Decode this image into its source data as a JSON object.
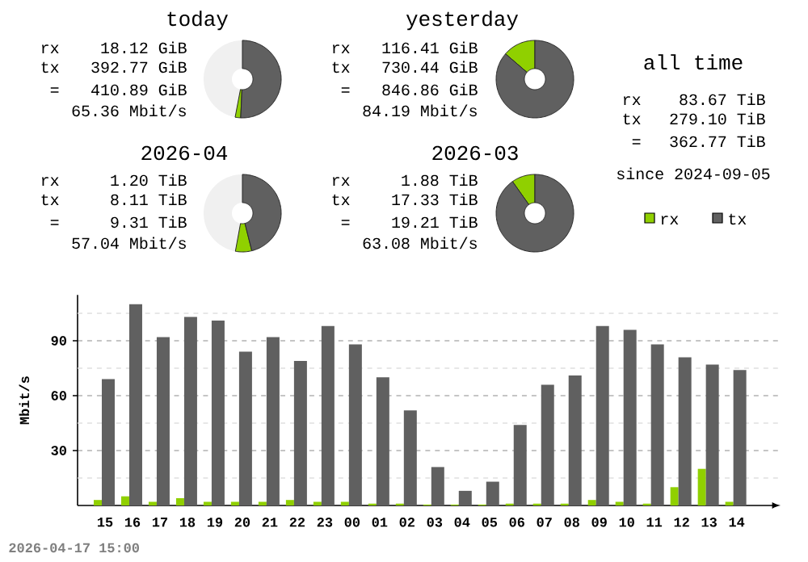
{
  "chart_data": [
    {
      "type": "donut",
      "title": "today",
      "categories": [
        null,
        null,
        null
      ],
      "values": [
        47,
        2.3,
        50.7
      ],
      "colors": [
        "#f0f0f0",
        "#90d000",
        "#606060"
      ],
      "annotations": [
        "rx",
        "18.12 GiB",
        "tx",
        "392.77 GiB",
        "=",
        "410.89 GiB",
        "65.36 Mbit/s"
      ]
    },
    {
      "type": "donut",
      "title": "yesterday",
      "categories": [
        null,
        null
      ],
      "values": [
        13.7,
        86.3
      ],
      "colors": [
        "#90d000",
        "#606060"
      ],
      "annotations": [
        "rx",
        "116.41 GiB",
        "tx",
        "730.44 GiB",
        "=",
        "846.86 GiB",
        "84.19 Mbit/s"
      ]
    },
    {
      "type": "other",
      "title": "all time",
      "annotations": [
        "rx",
        "83.67 TiB",
        "tx",
        "279.10 TiB",
        "=",
        "362.77 TiB",
        "since 2024-09-05"
      ]
    },
    {
      "type": "donut",
      "title": "2026-04",
      "categories": [
        null,
        null,
        null
      ],
      "values": [
        47.1,
        6.8,
        46.1
      ],
      "colors": [
        "#f0f0f0",
        "#90d000",
        "#606060"
      ],
      "annotations": [
        "rx",
        "1.20 TiB",
        "tx",
        "8.11 TiB",
        "=",
        "9.31 TiB",
        "57.04 Mbit/s"
      ]
    },
    {
      "type": "donut",
      "title": "2026-03",
      "categories": [
        null,
        null
      ],
      "values": [
        9.8,
        90.2
      ],
      "colors": [
        "#90d000",
        "#606060"
      ],
      "annotations": [
        "rx",
        "1.88 TiB",
        "tx",
        "17.33 TiB",
        "=",
        "19.21 TiB",
        "63.08 Mbit/s"
      ]
    },
    {
      "type": "bar",
      "ylabel": "Mbit/s",
      "categories": [
        "15",
        "16",
        "17",
        "18",
        "19",
        "20",
        "21",
        "22",
        "23",
        "00",
        "01",
        "02",
        "03",
        "04",
        "05",
        "06",
        "07",
        "08",
        "09",
        "10",
        "11",
        "12",
        "13",
        "14"
      ],
      "series": [
        {
          "name": "rx",
          "color": "#90d000",
          "values": [
            3,
            5,
            2,
            4,
            2,
            2,
            2,
            3,
            2,
            2,
            1,
            1,
            0.5,
            0.5,
            0.5,
            1,
            1,
            1,
            3,
            2,
            1,
            10,
            20,
            2
          ]
        },
        {
          "name": "tx",
          "color": "#606060",
          "values": [
            69,
            110,
            92,
            103,
            101,
            84,
            92,
            79,
            98,
            88,
            70,
            52,
            21,
            8,
            13,
            44,
            66,
            71,
            98,
            96,
            88,
            81,
            77,
            74
          ]
        }
      ],
      "ylim": [
        0,
        115
      ],
      "yticks": [
        {
          "value": 15,
          "label": null
        },
        30,
        {
          "value": 45,
          "label": null
        },
        60,
        {
          "value": 75,
          "label": null
        },
        90,
        {
          "value": 105,
          "label": null
        }
      ],
      "grid": "y",
      "legend": "top right",
      "annotations": [
        "2026-04-17 15:00"
      ]
    }
  ]
}
